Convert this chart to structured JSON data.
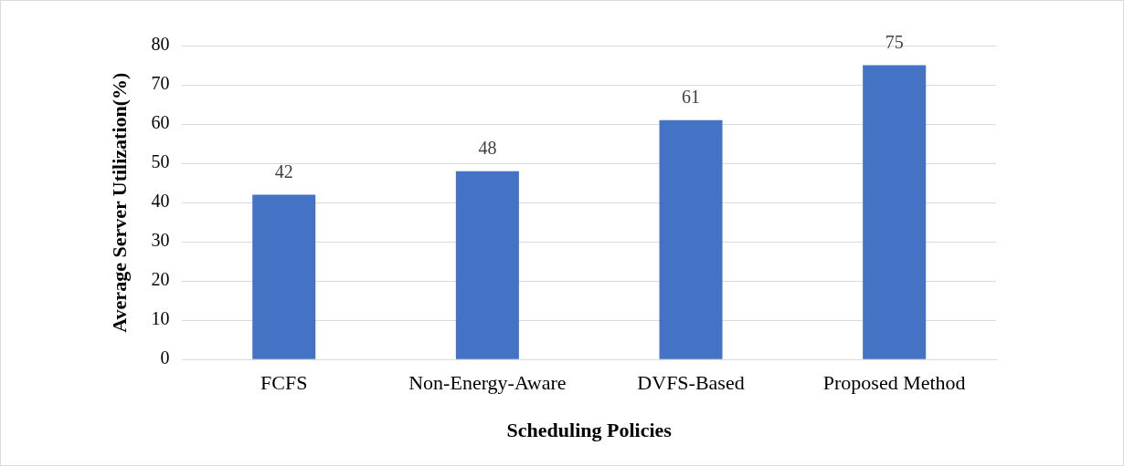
{
  "chart_data": {
    "type": "bar",
    "xlabel": "Scheduling Policies",
    "ylabel": "Average Server Utilization(%)",
    "categories": [
      "FCFS",
      "Non-Energy-Aware",
      "DVFS-Based",
      "Proposed Method"
    ],
    "values": [
      42,
      48,
      61,
      75
    ],
    "color": "#4472c4",
    "ylim": [
      0,
      80
    ],
    "yticks": [
      0,
      10,
      20,
      30,
      40,
      50,
      60,
      70,
      80
    ],
    "grid": "y",
    "legend": false,
    "data_labels": true
  }
}
